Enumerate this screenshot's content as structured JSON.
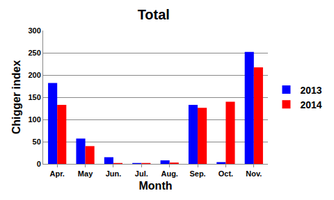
{
  "chart_data": {
    "type": "bar",
    "title": "Total",
    "x_label": "Month",
    "y_label": "Chigger index",
    "categories": [
      "Apr.",
      "May",
      "Jun.",
      "Jul.",
      "Aug.",
      "Sep.",
      "Oct.",
      "Nov."
    ],
    "series": [
      {
        "name": "2013",
        "color": "#0000ff",
        "values": [
          182,
          57,
          15,
          2,
          8,
          133,
          4,
          252
        ]
      },
      {
        "name": "2014",
        "color": "#ff0000",
        "values": [
          133,
          40,
          2,
          2,
          3,
          126,
          140,
          217
        ]
      }
    ],
    "ylim": [
      0,
      300
    ],
    "yticks": [
      0,
      50,
      100,
      150,
      200,
      250,
      300
    ],
    "grid": true,
    "legend": "right"
  }
}
